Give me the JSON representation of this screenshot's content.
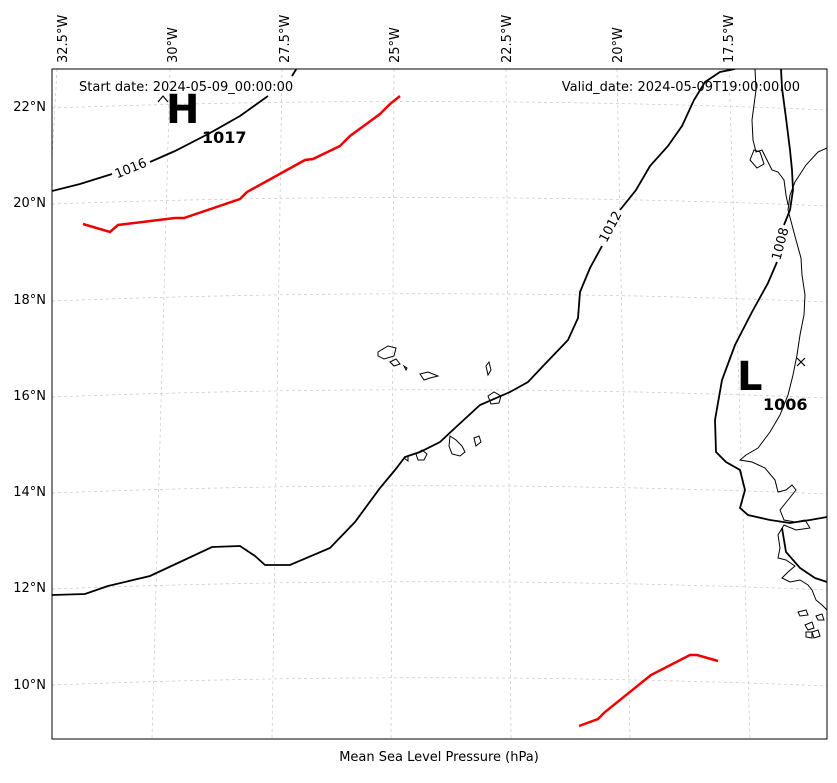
{
  "map": {
    "caption": "Mean Sea Level Pressure (hPa)",
    "start_date": "Start date: 2024-05-09_00:00:00",
    "valid_date": "Valid_date: 2024-05-09T19:00:00.00",
    "longitude_labels": [
      "32.5°W",
      "30°W",
      "27.5°W",
      "25°W",
      "22.5°W",
      "20°W",
      "17.5°W"
    ],
    "latitude_labels": [
      "22°N",
      "20°N",
      "18°N",
      "16°N",
      "14°N",
      "12°N",
      "10°N"
    ],
    "isobars": [
      {
        "label": "1016"
      },
      {
        "label": "1012"
      },
      {
        "label": "1008"
      }
    ],
    "pressure_centers": [
      {
        "type": "high",
        "letter": "H",
        "value": "1017"
      },
      {
        "type": "low",
        "letter": "L",
        "value": "1006"
      }
    ],
    "colors": {
      "isobar": "#000000",
      "front": "#ee0000",
      "gridline": "#c8c8c8",
      "coastline": "#000000"
    }
  }
}
